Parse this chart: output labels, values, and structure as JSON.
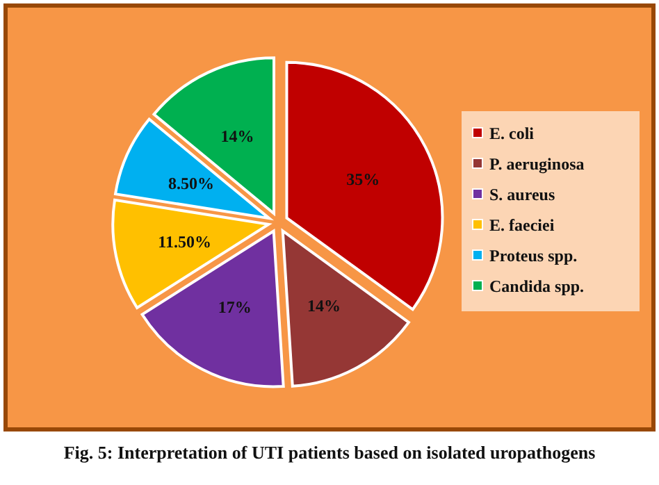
{
  "chart_data": {
    "type": "pie",
    "categories": [
      "E. coli",
      "P. aeruginosa",
      "S. aureus",
      "E. faeciei",
      "Proteus spp.",
      "Candida spp."
    ],
    "values": [
      35,
      14,
      17,
      11.5,
      8.5,
      14
    ],
    "value_labels": [
      "35%",
      "14%",
      "17%",
      "11.50%",
      "8.50%",
      "14%"
    ],
    "colors": [
      "#c00000",
      "#953735",
      "#7030a0",
      "#ffc000",
      "#00b0f0",
      "#00b050"
    ],
    "legend": "right",
    "annotations": [
      "Fig. 5: Interpretation of UTI patients based on isolated uropathogens"
    ]
  }
}
